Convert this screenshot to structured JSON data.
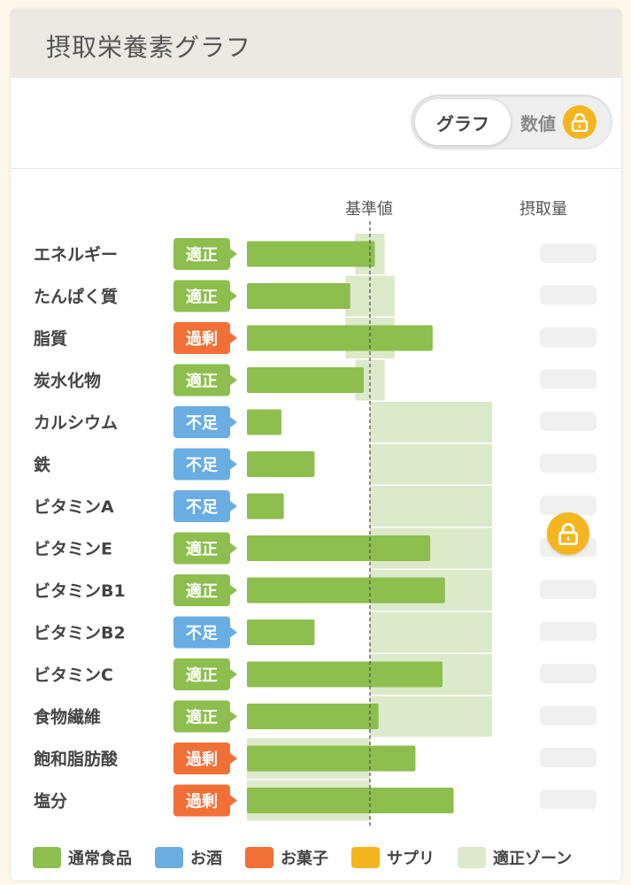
{
  "title": "摂取栄養素グラフ",
  "toggle": {
    "active_label": "グラフ",
    "inactive_label": "数値",
    "inactive_locked": true
  },
  "columns": {
    "reference": "基準値",
    "intake": "摂取量"
  },
  "colors": {
    "normal_food": "#8dbe4e",
    "alcohol": "#6aade2",
    "sweets": "#f26f36",
    "supplement": "#f5b51e",
    "zone": "#dde9cb",
    "tag_ok": "#8dbe4e",
    "tag_over": "#f26f36",
    "tag_under": "#6aade2",
    "lock": "#f5b51e"
  },
  "status_colors": {
    "適正": "#8dbe4e",
    "過剰": "#f26f36",
    "不足": "#6aade2"
  },
  "chart_data": {
    "type": "bar",
    "orientation": "horizontal",
    "reference_line_percent": 100,
    "categories": [
      "エネルギー",
      "たんぱく質",
      "脂質",
      "炭水化物",
      "カルシウム",
      "鉄",
      "ビタミンA",
      "ビタミンE",
      "ビタミンB1",
      "ビタミンB2",
      "ビタミンC",
      "食物繊維",
      "飽和脂肪酸",
      "塩分"
    ],
    "status": [
      "適正",
      "適正",
      "過剰",
      "適正",
      "不足",
      "不足",
      "不足",
      "適正",
      "適正",
      "不足",
      "適正",
      "適正",
      "過剰",
      "過剰"
    ],
    "values_percent_of_reference": [
      104,
      84,
      151,
      95,
      28,
      55,
      30,
      149,
      161,
      55,
      159,
      107,
      137,
      168
    ],
    "zone_percent": [
      [
        88,
        112
      ],
      [
        80,
        120
      ],
      [
        80,
        120
      ],
      [
        88,
        112
      ],
      [
        100,
        200
      ],
      [
        100,
        200
      ],
      [
        100,
        200
      ],
      [
        100,
        200
      ],
      [
        100,
        200
      ],
      [
        100,
        200
      ],
      [
        100,
        200
      ],
      [
        100,
        200
      ],
      [
        0,
        100
      ],
      [
        0,
        100
      ]
    ],
    "intake_values_blurred": true
  },
  "legend": [
    "通常食品",
    "お酒",
    "お菓子",
    "サプリ",
    "適正ゾーン"
  ]
}
